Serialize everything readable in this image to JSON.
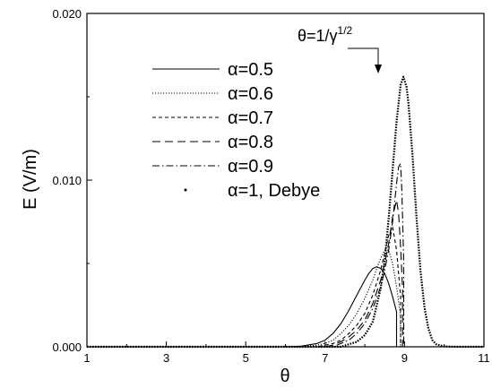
{
  "chart_data": {
    "type": "line",
    "title": "",
    "xlabel": "θ",
    "ylabel": "E (V/m)",
    "xlim": [
      1,
      11
    ],
    "ylim": [
      0,
      0.02
    ],
    "x_ticks": [
      1,
      3,
      5,
      7,
      9,
      11
    ],
    "x_tick_labels": [
      "1",
      "3",
      "5",
      "7",
      "9",
      "11"
    ],
    "y_ticks": [
      0,
      0.01,
      0.02
    ],
    "y_tick_labels": [
      "0.000",
      "0.010",
      "0.020"
    ],
    "grid": false,
    "legend_position": "top-left",
    "annotation": {
      "base": "θ=1/γ",
      "sup": "1/2",
      "x": 8.97,
      "y": 0.0162
    },
    "series": [
      {
        "name": "α=0.5",
        "dash": "solid",
        "x": [
          6.0,
          6.4,
          6.8,
          7.0,
          7.2,
          7.4,
          7.6,
          7.8,
          8.0,
          8.1,
          8.2,
          8.3,
          8.4,
          8.5,
          8.6,
          8.7,
          8.8
        ],
        "y": [
          0.0,
          4e-05,
          0.0002,
          0.0004,
          0.0008,
          0.0014,
          0.0022,
          0.0031,
          0.004,
          0.0044,
          0.0047,
          0.0048,
          0.0047,
          0.0044,
          0.0038,
          0.003,
          0.0021
        ]
      },
      {
        "name": "α=0.6",
        "dash": "dotted",
        "x": [
          6.4,
          6.8,
          7.0,
          7.2,
          7.4,
          7.6,
          7.8,
          8.0,
          8.2,
          8.3,
          8.4,
          8.5,
          8.6,
          8.7,
          8.8,
          8.9
        ],
        "y": [
          0.0,
          0.0001,
          0.0002,
          0.0004,
          0.0008,
          0.0013,
          0.002,
          0.0029,
          0.004,
          0.0047,
          0.0053,
          0.0058,
          0.0058,
          0.005,
          0.0036,
          0.0019
        ]
      },
      {
        "name": "α=0.7",
        "dash": "short-dash",
        "x": [
          6.8,
          7.0,
          7.2,
          7.4,
          7.6,
          7.8,
          8.0,
          8.2,
          8.4,
          8.5,
          8.6,
          8.7,
          8.8,
          8.9
        ],
        "y": [
          0.0,
          0.0001,
          0.0002,
          0.0004,
          0.0008,
          0.0013,
          0.002,
          0.0031,
          0.0046,
          0.0056,
          0.0067,
          0.0072,
          0.0058,
          0.003
        ]
      },
      {
        "name": "α=0.8",
        "dash": "long-dash",
        "x": [
          7.0,
          7.2,
          7.4,
          7.6,
          7.8,
          8.0,
          8.2,
          8.4,
          8.5,
          8.6,
          8.7,
          8.8,
          8.85,
          8.9,
          8.95
        ],
        "y": [
          0.0,
          0.0001,
          0.0003,
          0.0006,
          0.001,
          0.0016,
          0.0026,
          0.004,
          0.005,
          0.0062,
          0.0078,
          0.0088,
          0.008,
          0.006,
          0.0035
        ]
      },
      {
        "name": "α=0.9",
        "dash": "dash-dot",
        "x": [
          7.2,
          7.4,
          7.6,
          7.8,
          8.0,
          8.2,
          8.4,
          8.5,
          8.6,
          8.7,
          8.8,
          8.85,
          8.9,
          8.93,
          8.96,
          8.98
        ],
        "y": [
          0.0,
          0.0002,
          0.0004,
          0.0008,
          0.0014,
          0.0023,
          0.0036,
          0.0046,
          0.0058,
          0.0075,
          0.0098,
          0.0108,
          0.011,
          0.0095,
          0.007,
          0.005
        ]
      },
      {
        "name": "α=1, Debye",
        "dash": "dense-dot",
        "x": [
          7.4,
          7.8,
          8.0,
          8.2,
          8.4,
          8.5,
          8.6,
          8.7,
          8.8,
          8.9,
          8.97,
          9.05,
          9.1,
          9.2,
          9.3,
          9.4,
          9.5,
          9.6,
          9.7,
          9.8,
          10.0,
          10.3
        ],
        "y": [
          0.0,
          0.0003,
          0.0007,
          0.0015,
          0.0035,
          0.0052,
          0.0077,
          0.0106,
          0.0135,
          0.0157,
          0.0162,
          0.0156,
          0.0146,
          0.0115,
          0.0078,
          0.0046,
          0.0024,
          0.0011,
          0.0004,
          0.00015,
          2e-05,
          0.0
        ]
      }
    ]
  }
}
